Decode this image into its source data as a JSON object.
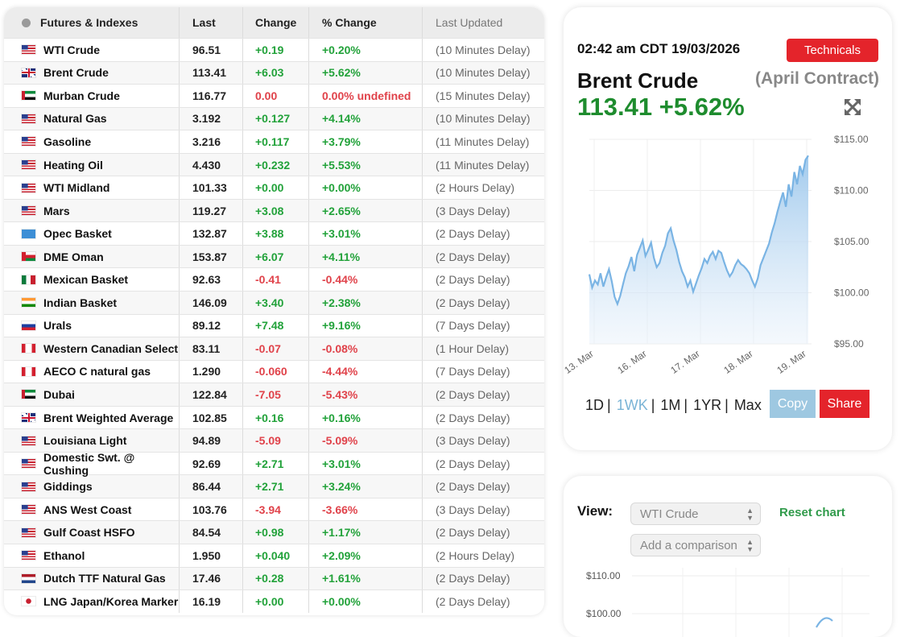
{
  "table": {
    "headers": {
      "name": "Futures & Indexes",
      "last": "Last",
      "change": "Change",
      "pct": "% Change",
      "updated": "Last Updated"
    },
    "rows": [
      {
        "name": "WTI Crude",
        "last": "96.51",
        "change": "+0.19",
        "pct": "+0.20%",
        "updated": "(10 Minutes Delay)",
        "flag": "us",
        "dir": "up"
      },
      {
        "name": "Brent Crude",
        "last": "113.41",
        "change": "+6.03",
        "pct": "+5.62%",
        "updated": "(10 Minutes Delay)",
        "flag": "uk",
        "dir": "up"
      },
      {
        "name": "Murban Crude",
        "last": "116.77",
        "change": "0.00",
        "pct": "0.00% undefined",
        "updated": "(15 Minutes Delay)",
        "flag": "ae",
        "dir": "down"
      },
      {
        "name": "Natural Gas",
        "last": "3.192",
        "change": "+0.127",
        "pct": "+4.14%",
        "updated": "(10 Minutes Delay)",
        "flag": "us",
        "dir": "up"
      },
      {
        "name": "Gasoline",
        "last": "3.216",
        "change": "+0.117",
        "pct": "+3.79%",
        "updated": "(11 Minutes Delay)",
        "flag": "us",
        "dir": "up"
      },
      {
        "name": "Heating Oil",
        "last": "4.430",
        "change": "+0.232",
        "pct": "+5.53%",
        "updated": "(11 Minutes Delay)",
        "flag": "us",
        "dir": "up"
      },
      {
        "name": "WTI Midland",
        "last": "101.33",
        "change": "+0.00",
        "pct": "+0.00%",
        "updated": "(2 Hours Delay)",
        "flag": "us",
        "dir": "up"
      },
      {
        "name": "Mars",
        "last": "119.27",
        "change": "+3.08",
        "pct": "+2.65%",
        "updated": "(3 Days Delay)",
        "flag": "us",
        "dir": "up"
      },
      {
        "name": "Opec Basket",
        "last": "132.87",
        "change": "+3.88",
        "pct": "+3.01%",
        "updated": "(2 Days Delay)",
        "flag": "opec",
        "dir": "up"
      },
      {
        "name": "DME Oman",
        "last": "153.87",
        "change": "+6.07",
        "pct": "+4.11%",
        "updated": "(2 Days Delay)",
        "flag": "om",
        "dir": "up"
      },
      {
        "name": "Mexican Basket",
        "last": "92.63",
        "change": "-0.41",
        "pct": "-0.44%",
        "updated": "(2 Days Delay)",
        "flag": "mx",
        "dir": "down"
      },
      {
        "name": "Indian Basket",
        "last": "146.09",
        "change": "+3.40",
        "pct": "+2.38%",
        "updated": "(2 Days Delay)",
        "flag": "in",
        "dir": "up"
      },
      {
        "name": "Urals",
        "last": "89.12",
        "change": "+7.48",
        "pct": "+9.16%",
        "updated": "(7 Days Delay)",
        "flag": "ru",
        "dir": "up"
      },
      {
        "name": "Western Canadian Select",
        "last": "83.11",
        "change": "-0.07",
        "pct": "-0.08%",
        "updated": "(1 Hour Delay)",
        "flag": "ca",
        "dir": "down"
      },
      {
        "name": "AECO C natural gas",
        "last": "1.290",
        "change": "-0.060",
        "pct": "-4.44%",
        "updated": "(7 Days Delay)",
        "flag": "ca",
        "dir": "down"
      },
      {
        "name": "Dubai",
        "last": "122.84",
        "change": "-7.05",
        "pct": "-5.43%",
        "updated": "(2 Days Delay)",
        "flag": "ae",
        "dir": "down"
      },
      {
        "name": "Brent Weighted Average",
        "last": "102.85",
        "change": "+0.16",
        "pct": "+0.16%",
        "updated": "(2 Days Delay)",
        "flag": "uk",
        "dir": "up"
      },
      {
        "name": "Louisiana Light",
        "last": "94.89",
        "change": "-5.09",
        "pct": "-5.09%",
        "updated": "(3 Days Delay)",
        "flag": "us",
        "dir": "down"
      },
      {
        "name": "Domestic Swt. @ Cushing",
        "last": "92.69",
        "change": "+2.71",
        "pct": "+3.01%",
        "updated": "(2 Days Delay)",
        "flag": "us",
        "dir": "up"
      },
      {
        "name": "Giddings",
        "last": "86.44",
        "change": "+2.71",
        "pct": "+3.24%",
        "updated": "(2 Days Delay)",
        "flag": "us",
        "dir": "up"
      },
      {
        "name": "ANS West Coast",
        "last": "103.76",
        "change": "-3.94",
        "pct": "-3.66%",
        "updated": "(3 Days Delay)",
        "flag": "us",
        "dir": "down"
      },
      {
        "name": "Gulf Coast HSFO",
        "last": "84.54",
        "change": "+0.98",
        "pct": "+1.17%",
        "updated": "(2 Days Delay)",
        "flag": "us",
        "dir": "up"
      },
      {
        "name": "Ethanol",
        "last": "1.950",
        "change": "+0.040",
        "pct": "+2.09%",
        "updated": "(2 Hours Delay)",
        "flag": "us",
        "dir": "up"
      },
      {
        "name": "Dutch TTF Natural Gas",
        "last": "17.46",
        "change": "+0.28",
        "pct": "+1.61%",
        "updated": "(2 Days Delay)",
        "flag": "nl",
        "dir": "up"
      },
      {
        "name": "LNG Japan/Korea Marker",
        "last": "16.19",
        "change": "+0.00",
        "pct": "+0.00%",
        "updated": "(2 Days Delay)",
        "flag": "jk",
        "dir": "up"
      }
    ]
  },
  "detail": {
    "timestamp": "02:42 am CDT 19/03/2026",
    "technicals_label": "Technicals",
    "name": "Brent Crude",
    "contract": "(April Contract)",
    "price": "113.41",
    "pct": "+5.62%",
    "ranges": [
      "1D",
      "1WK",
      "1M",
      "1YR",
      "Max"
    ],
    "active_range": "1WK",
    "copy_label": "Copy",
    "share_label": "Share"
  },
  "chart_data": {
    "type": "area",
    "x_tick_labels": [
      "13. Mar",
      "16. Mar",
      "17. Mar",
      "18. Mar",
      "19. Mar"
    ],
    "y_tick_labels": [
      "$115.00",
      "$110.00",
      "$105.00",
      "$100.00",
      "$95.00"
    ],
    "ylim": [
      95,
      115
    ],
    "series": [
      {
        "values": [
          101.8,
          100.5,
          101.2,
          100.8,
          101.9,
          100.6,
          101.5,
          102.3,
          101.1,
          99.6,
          98.9,
          99.7,
          100.8,
          101.9,
          102.6,
          103.5,
          102.1,
          103.7,
          104.4,
          105.1,
          103.6,
          104.2,
          104.9,
          103.4,
          102.5,
          102.9,
          103.9,
          104.6,
          105.8,
          106.3,
          105.1,
          104.2,
          103.0,
          102.1,
          101.5,
          100.6,
          101.2,
          100.1,
          100.9,
          101.7,
          102.4,
          103.3,
          102.9,
          103.6,
          104.0,
          103.3,
          104.1,
          103.9,
          103.0,
          102.2,
          101.6,
          102.0,
          102.7,
          103.2,
          102.8,
          102.6,
          102.3,
          101.9,
          101.2,
          100.6,
          101.4,
          102.7,
          103.4,
          104.1,
          104.8,
          105.9,
          106.8,
          107.9,
          108.9,
          109.8,
          108.4,
          110.6,
          109.4,
          111.8,
          110.6,
          112.4,
          111.6,
          113.0,
          113.41
        ],
        "color": "#7ab4e4"
      }
    ]
  },
  "compare": {
    "view_label": "View:",
    "selected": "WTI Crude",
    "comparison_placeholder": "Add a comparison",
    "reset_label": "Reset chart",
    "y_tick_labels": [
      "$110.00",
      "$100.00"
    ]
  },
  "colors": {
    "up": "#22a23a",
    "down": "#e0424a",
    "accent_red": "#e4242b",
    "price_green": "#1e8c2e"
  },
  "icons": {
    "header": "globe-icon",
    "expand": "expand-arrows-icon",
    "select": "up-down-arrows-icon"
  }
}
